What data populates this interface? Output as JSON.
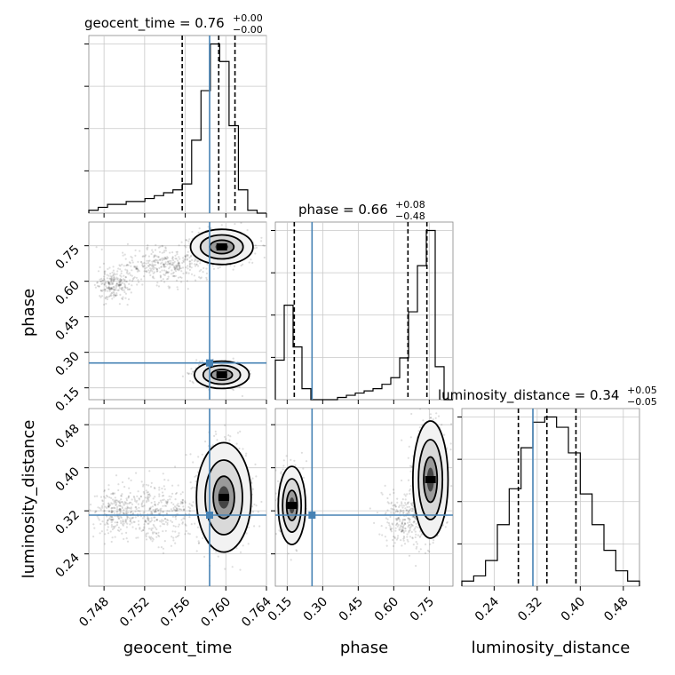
{
  "chart_data": {
    "type": "corner",
    "parameters": [
      "geocent_time",
      "phase",
      "luminosity_distance"
    ],
    "truth": {
      "geocent_time": 0.7584,
      "phase": 0.255,
      "luminosity_distance": 0.312
    },
    "titles": [
      {
        "main": "geocent_time = 0.76",
        "sup": "+0.00",
        "sub": "−0.00"
      },
      {
        "main": "phase = 0.66",
        "sup": "+0.08",
        "sub": "−0.48"
      },
      {
        "main": "luminosity_distance = 0.34",
        "sup": "+0.05",
        "sub": "−0.05"
      }
    ],
    "axes": {
      "geocent_time": {
        "range": [
          0.7465,
          0.764
        ],
        "ticks": [
          "0.748",
          "0.752",
          "0.756",
          "0.760",
          "0.764"
        ],
        "tick_values": [
          0.748,
          0.752,
          0.756,
          0.76,
          0.764
        ]
      },
      "phase": {
        "range": [
          0.1,
          0.85
        ],
        "ticks": [
          "0.15",
          "0.30",
          "0.45",
          "0.60",
          "0.75"
        ],
        "tick_values": [
          0.15,
          0.3,
          0.45,
          0.6,
          0.75
        ]
      },
      "luminosity_distance": {
        "range": [
          0.18,
          0.51
        ],
        "ticks": [
          "0.24",
          "0.32",
          "0.40",
          "0.48"
        ],
        "tick_values": [
          0.24,
          0.32,
          0.4,
          0.48
        ]
      }
    },
    "histograms": {
      "geocent_time": {
        "counts": [
          1,
          2,
          3,
          3,
          4,
          4,
          5,
          6,
          7,
          8,
          10,
          25,
          42,
          58,
          52,
          30,
          8,
          1,
          0
        ],
        "quantiles": [
          0.7557,
          0.7593,
          0.7609
        ]
      },
      "phase": {
        "counts": [
          18,
          43,
          24,
          5,
          0,
          0,
          0,
          1,
          2,
          3,
          4,
          5,
          7,
          10,
          19,
          40,
          61,
          77,
          15,
          0
        ],
        "quantiles": [
          0.18,
          0.66,
          0.74
        ]
      },
      "luminosity_distance": {
        "counts": [
          1,
          2,
          5,
          12,
          19,
          27,
          32,
          33,
          31,
          26,
          18,
          12,
          7,
          3,
          1
        ],
        "quantiles": [
          0.285,
          0.338,
          0.392
        ]
      }
    },
    "grid": true
  }
}
